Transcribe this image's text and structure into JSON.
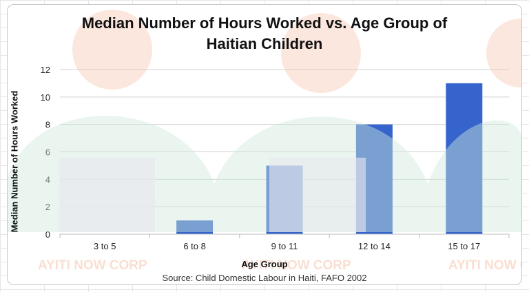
{
  "chart_data": {
    "type": "bar",
    "title_lines": [
      "Median Number of Hours Worked vs. Age Group of",
      "Haitian Children"
    ],
    "xlabel": "Age Group",
    "ylabel": "Median Number of Hours Worked",
    "categories": [
      "3 to 5",
      "6 to 8",
      "9 to 11",
      "12 to 14",
      "15 to 17"
    ],
    "values": [
      0,
      1,
      5,
      8,
      11
    ],
    "ylim": [
      0,
      12
    ],
    "yticks": [
      "0",
      "2",
      "4",
      "6",
      "8",
      "10",
      "12"
    ],
    "grid": "horizontal",
    "bar_color": "#3565CC",
    "source": "Source: Child Domestic Labour in Haiti, FAFO 2002"
  },
  "watermark": {
    "text": "AYITI NOW CORP",
    "colors": {
      "orange": "#F6C9B4",
      "green": "#CFE9DA",
      "gray": "#E8E8EE"
    }
  }
}
